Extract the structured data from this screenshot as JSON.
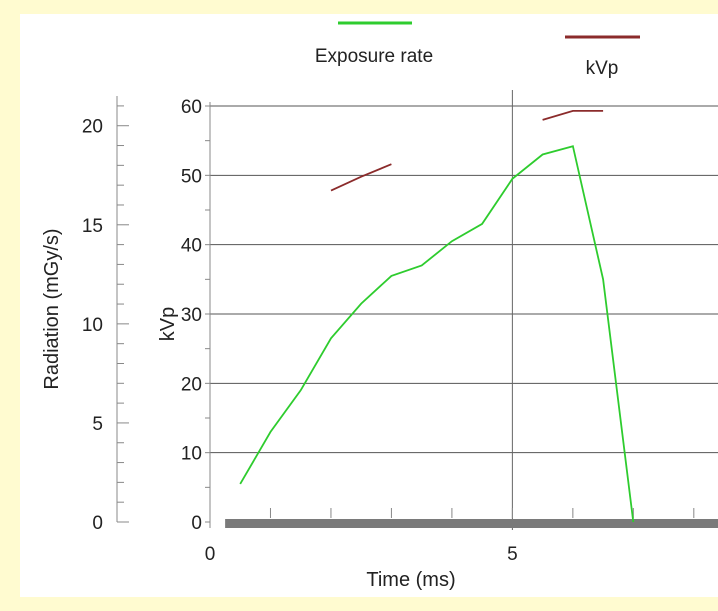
{
  "chart_data": {
    "type": "line",
    "legend": {
      "placement": "top",
      "entries": [
        {
          "label": "Exposure rate",
          "color": "#2ecc2e"
        },
        {
          "label": "kVp",
          "color": "#8b2b2b"
        }
      ]
    },
    "xlabel": "Time (ms)",
    "ylabel_left": "Radiation (mGy/s)",
    "ylabel_inner": "kVp",
    "xlim": [
      0,
      8.4
    ],
    "ylim_kvp": [
      0,
      60
    ],
    "ylim_radiation": [
      0,
      21.5
    ],
    "x_ticks": [
      {
        "value": 0,
        "label": "0"
      },
      {
        "value": 5,
        "label": "5"
      }
    ],
    "kvp_ticks": [
      {
        "value": 0,
        "label": "0"
      },
      {
        "value": 10,
        "label": "10"
      },
      {
        "value": 20,
        "label": "20"
      },
      {
        "value": 30,
        "label": "30"
      },
      {
        "value": 40,
        "label": "40"
      },
      {
        "value": 50,
        "label": "50"
      },
      {
        "value": 60,
        "label": "60"
      }
    ],
    "radiation_ticks": [
      {
        "value": 0,
        "label": "0"
      },
      {
        "value": 5,
        "label": "5"
      },
      {
        "value": 10,
        "label": "10"
      },
      {
        "value": 15,
        "label": "15"
      },
      {
        "value": 20,
        "label": "20"
      }
    ],
    "grid": true,
    "series": [
      {
        "name": "Exposure rate",
        "axis": "kvp",
        "color": "#2ecc2e",
        "points": [
          [
            0.5,
            5.5
          ],
          [
            0.8,
            10
          ],
          [
            1.0,
            13
          ],
          [
            1.5,
            19
          ],
          [
            2.0,
            26.5
          ],
          [
            2.5,
            31.5
          ],
          [
            3.0,
            35.5
          ],
          [
            3.5,
            37
          ],
          [
            4.0,
            40.5
          ],
          [
            4.5,
            43
          ],
          [
            5.0,
            49.5
          ],
          [
            5.5,
            53
          ],
          [
            6.0,
            54.2
          ],
          [
            6.5,
            35
          ],
          [
            7.0,
            0
          ]
        ]
      },
      {
        "name": "kVp",
        "axis": "kvp",
        "color": "#8b2b2b",
        "segments": [
          [
            [
              2.0,
              47.8
            ],
            [
              2.5,
              49.8
            ],
            [
              3.0,
              51.6
            ]
          ],
          [
            [
              5.5,
              58
            ],
            [
              6.0,
              59.3
            ],
            [
              6.5,
              59.3
            ]
          ]
        ]
      }
    ],
    "baseline_band": {
      "from": 0.25,
      "to": 8.4,
      "color": "#7a7a7a"
    }
  }
}
